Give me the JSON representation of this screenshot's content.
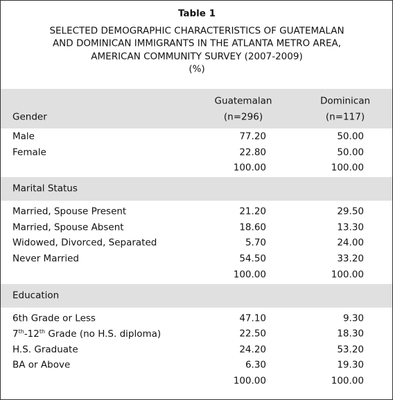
{
  "header": {
    "title": "Table 1",
    "subtitle_lines": [
      "SELECTED DEMOGRAPHIC CHARACTERISTICS OF GUATEMALAN",
      "AND DOMINICAN IMMIGRANTS IN THE ATLANTA METRO AREA,",
      "AMERICAN COMMUNITY SURVEY (2007-2009)",
      "(%)"
    ]
  },
  "table": {
    "columns": [
      {
        "name": "Guatemalan",
        "n": "(n=296)"
      },
      {
        "name": "Dominican",
        "n": "(n=117)"
      }
    ],
    "sections": [
      {
        "heading": "Gender",
        "rows": [
          {
            "label": "Male",
            "values": [
              "77.20",
              "50.00"
            ]
          },
          {
            "label": "Female",
            "values": [
              "22.80",
              "50.00"
            ]
          },
          {
            "values": [
              "100.00",
              "100.00"
            ]
          }
        ]
      },
      {
        "heading": "Marital Status",
        "rows": [
          {
            "label": "Married, Spouse Present",
            "values": [
              "21.20",
              "29.50"
            ]
          },
          {
            "label": "Married, Spouse Absent",
            "values": [
              "18.60",
              "13.30"
            ]
          },
          {
            "label": "Widowed, Divorced, Separated",
            "values": [
              "5.70",
              "24.00"
            ]
          },
          {
            "label": "Never Married",
            "values": [
              "54.50",
              "33.20"
            ]
          },
          {
            "values": [
              "100.00",
              "100.00"
            ]
          }
        ]
      },
      {
        "heading": "Education",
        "rows": [
          {
            "label": "6th Grade or Less",
            "values": [
              "47.10",
              "9.30"
            ]
          },
          {
            "label_parts": [
              {
                "text": "7"
              },
              {
                "text": "th",
                "sup": true
              },
              {
                "text": "-12"
              },
              {
                "text": "th",
                "sup": true
              },
              {
                "text": " Grade (no H.S. diploma)"
              }
            ],
            "values": [
              "22.50",
              "18.30"
            ]
          },
          {
            "label": "H.S. Graduate",
            "values": [
              "24.20",
              "53.20"
            ]
          },
          {
            "label": "BA or Above",
            "values": [
              "6.30",
              "19.30"
            ]
          },
          {
            "values": [
              "100.00",
              "100.00"
            ]
          }
        ]
      }
    ]
  }
}
